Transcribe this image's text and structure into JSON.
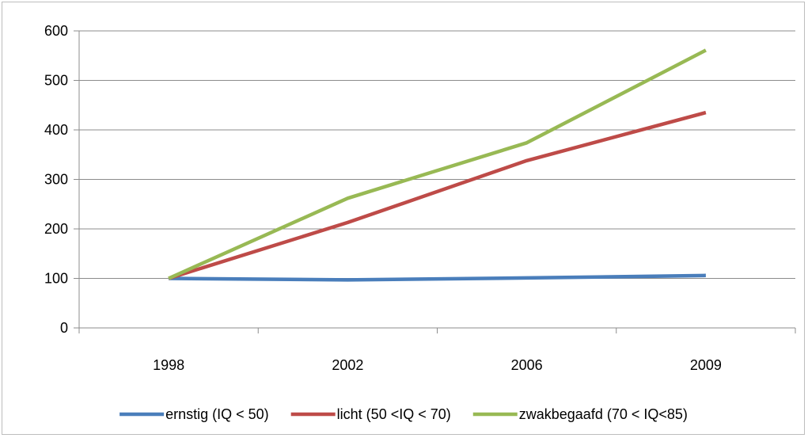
{
  "chart_data": {
    "type": "line",
    "title": "",
    "xlabel": "",
    "ylabel": "",
    "categories": [
      "1998",
      "2002",
      "2006",
      "2009"
    ],
    "ylim": [
      0,
      600
    ],
    "yticks": [
      0,
      100,
      200,
      300,
      400,
      500,
      600
    ],
    "grid": "horizontal",
    "legend_position": "bottom",
    "series": [
      {
        "name": "ernstig (IQ < 50)",
        "color": "#4a7ebb",
        "values": [
          100,
          97,
          101,
          106
        ]
      },
      {
        "name": "licht (50 <IQ < 70)",
        "color": "#be4b48",
        "values": [
          100,
          213,
          338,
          435
        ]
      },
      {
        "name": "zwakbegaafd (70 < IQ<85)",
        "color": "#98b954",
        "values": [
          100,
          262,
          374,
          561
        ]
      }
    ]
  }
}
